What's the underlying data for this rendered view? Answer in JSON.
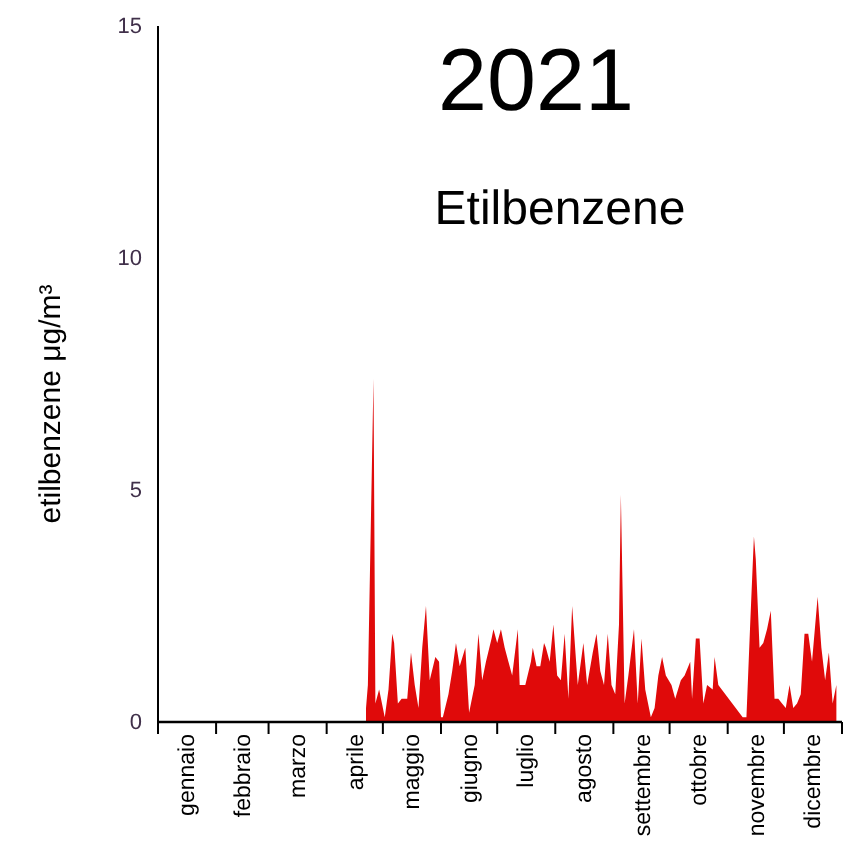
{
  "chart_data": {
    "type": "area",
    "title": "2021",
    "subtitle": "Etilbenzene",
    "ylabel": "etilbenzene μg/m³",
    "xlim": [
      "2021-01-01",
      "2022-01-01"
    ],
    "ylim": [
      0,
      15
    ],
    "yticks": [
      0,
      5,
      10,
      15
    ],
    "xticks": [
      {
        "value": "2021-01-01",
        "label": null
      },
      {
        "value": "2021-01-16",
        "label": "gennaio"
      },
      {
        "value": "2021-02-01",
        "label": null
      },
      {
        "value": "2021-02-15",
        "label": "febbraio"
      },
      {
        "value": "2021-03-01",
        "label": null
      },
      {
        "value": "2021-03-16",
        "label": "marzo"
      },
      {
        "value": "2021-04-01",
        "label": null
      },
      {
        "value": "2021-04-16",
        "label": "aprile"
      },
      {
        "value": "2021-05-01",
        "label": null
      },
      {
        "value": "2021-05-16",
        "label": "maggio"
      },
      {
        "value": "2021-06-01",
        "label": null
      },
      {
        "value": "2021-06-16",
        "label": "giugno"
      },
      {
        "value": "2021-07-01",
        "label": null
      },
      {
        "value": "2021-07-16",
        "label": "luglio"
      },
      {
        "value": "2021-08-01",
        "label": null
      },
      {
        "value": "2021-08-16",
        "label": "agosto"
      },
      {
        "value": "2021-09-01",
        "label": null
      },
      {
        "value": "2021-09-16",
        "label": "settembre"
      },
      {
        "value": "2021-10-01",
        "label": null
      },
      {
        "value": "2021-10-16",
        "label": "ottobre"
      },
      {
        "value": "2021-11-01",
        "label": null
      },
      {
        "value": "2021-11-16",
        "label": "novembre"
      },
      {
        "value": "2021-12-01",
        "label": null
      },
      {
        "value": "2021-12-16",
        "label": "dicembre"
      },
      {
        "value": "2022-01-01",
        "label": null
      }
    ],
    "grid": false,
    "series": [
      {
        "color": "#e00a0a",
        "x": [
          "2021-04-22",
          "2021-04-23",
          "2021-04-26",
          "2021-04-27",
          "2021-04-29",
          "2021-05-02",
          "2021-05-04",
          "2021-05-06",
          "2021-05-07",
          "2021-05-09",
          "2021-05-11",
          "2021-05-14",
          "2021-05-16",
          "2021-05-18",
          "2021-05-20",
          "2021-05-22",
          "2021-05-24",
          "2021-05-26",
          "2021-05-29",
          "2021-05-31",
          "2021-06-01",
          "2021-06-02",
          "2021-06-05",
          "2021-06-07",
          "2021-06-09",
          "2021-06-11",
          "2021-06-14",
          "2021-06-16",
          "2021-06-19",
          "2021-06-21",
          "2021-06-23",
          "2021-06-25",
          "2021-06-28",
          "2021-06-29",
          "2021-07-01",
          "2021-07-03",
          "2021-07-05",
          "2021-07-07",
          "2021-07-09",
          "2021-07-12",
          "2021-07-13",
          "2021-07-16",
          "2021-07-19",
          "2021-07-20",
          "2021-07-22",
          "2021-07-24",
          "2021-07-26",
          "2021-07-27",
          "2021-07-29",
          "2021-07-31",
          "2021-08-02",
          "2021-08-04",
          "2021-08-06",
          "2021-08-08",
          "2021-08-10",
          "2021-08-13",
          "2021-08-16",
          "2021-08-18",
          "2021-08-21",
          "2021-08-23",
          "2021-08-25",
          "2021-08-27",
          "2021-08-29",
          "2021-08-31",
          "2021-09-02",
          "2021-09-04",
          "2021-09-05",
          "2021-09-07",
          "2021-09-09",
          "2021-09-12",
          "2021-09-14",
          "2021-09-16",
          "2021-09-18",
          "2021-09-21",
          "2021-09-23",
          "2021-09-25",
          "2021-09-27",
          "2021-09-29",
          "2021-10-02",
          "2021-10-04",
          "2021-10-07",
          "2021-10-09",
          "2021-10-12",
          "2021-10-13",
          "2021-10-15",
          "2021-10-17",
          "2021-10-19",
          "2021-10-21",
          "2021-10-24",
          "2021-10-25",
          "2021-10-27",
          "2021-11-09",
          "2021-11-11",
          "2021-11-13",
          "2021-11-15",
          "2021-11-16",
          "2021-11-18",
          "2021-11-20",
          "2021-11-22",
          "2021-11-24",
          "2021-11-26",
          "2021-11-28",
          "2021-11-30",
          "2021-12-02",
          "2021-12-04",
          "2021-12-06",
          "2021-12-08",
          "2021-12-10",
          "2021-12-12",
          "2021-12-14",
          "2021-12-16",
          "2021-12-19",
          "2021-12-21",
          "2021-12-23",
          "2021-12-25",
          "2021-12-27",
          "2021-12-29"
        ],
        "values": [
          0.3,
          0.8,
          7.4,
          0.4,
          0.7,
          0.1,
          0.7,
          1.9,
          1.7,
          0.4,
          0.5,
          0.5,
          1.5,
          0.8,
          0.3,
          1.6,
          2.5,
          0.9,
          1.4,
          1.3,
          0.1,
          0.1,
          0.6,
          1.1,
          1.7,
          1.2,
          1.6,
          0.2,
          0.8,
          1.9,
          0.9,
          1.3,
          1.8,
          2.0,
          1.7,
          2.0,
          1.6,
          1.3,
          1.0,
          2.0,
          0.8,
          0.8,
          1.3,
          1.6,
          1.2,
          1.2,
          1.7,
          1.6,
          1.3,
          2.1,
          1.0,
          0.9,
          1.9,
          0.5,
          2.5,
          0.8,
          1.7,
          0.8,
          1.5,
          1.9,
          1.1,
          0.8,
          1.9,
          0.8,
          0.6,
          2.1,
          4.9,
          0.4,
          1.0,
          2.0,
          0.4,
          1.8,
          0.7,
          0.1,
          0.3,
          1.0,
          1.4,
          1.0,
          0.8,
          0.5,
          0.9,
          1.0,
          1.3,
          0.5,
          1.8,
          1.8,
          0.4,
          0.8,
          0.7,
          1.4,
          0.8,
          0.1,
          0.1,
          2.1,
          4.0,
          3.5,
          1.6,
          1.7,
          2.0,
          2.4,
          0.5,
          0.5,
          0.4,
          0.3,
          0.8,
          0.3,
          0.4,
          0.6,
          1.9,
          1.9,
          1.3,
          2.7,
          1.6,
          0.9,
          1.5,
          0.4,
          0.8
        ]
      }
    ]
  }
}
